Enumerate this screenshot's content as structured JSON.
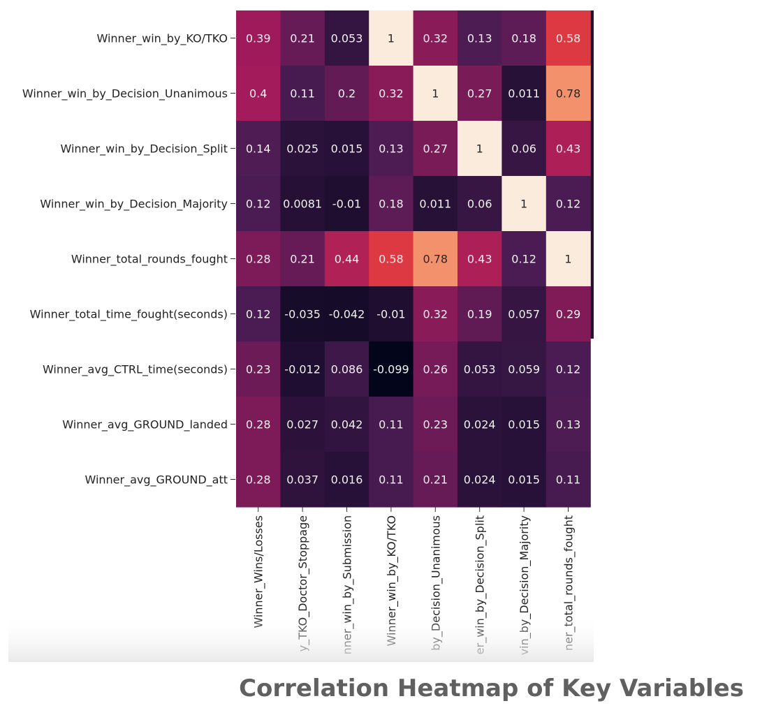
{
  "caption": "Correlation Heatmap of Key Variables",
  "colors": {
    "scale_low": "#03051a",
    "scale_mid1": "#4a1c53",
    "scale_mid2": "#a11a5b",
    "scale_mid3": "#e83f3f",
    "scale_mid4": "#f69c73",
    "scale_high": "#faebdd",
    "caption_text": "#606060"
  },
  "chart_data": {
    "type": "heatmap",
    "title": "",
    "row_labels": [
      "Winner_win_by_KO/TKO",
      "Winner_win_by_Decision_Unanimous",
      "Winner_win_by_Decision_Split",
      "Winner_win_by_Decision_Majority",
      "Winner_total_rounds_fought",
      "Winner_total_time_fought(seconds)",
      "Winner_avg_CTRL_time(seconds)",
      "Winner_avg_GROUND_landed",
      "Winner_avg_GROUND_att"
    ],
    "col_labels": [
      "Winner_Wins/Losses",
      "y_TKO_Doctor_Stoppage",
      "nner_win_by_Submission",
      "Winner_win_by_KO/TKO",
      "by_Decision_Unanimous",
      "er_win_by_Decision_Split",
      "vin_by_Decision_Majority",
      "ner_total_rounds_fought"
    ],
    "values": [
      [
        0.39,
        0.21,
        0.053,
        1,
        0.32,
        0.13,
        0.18,
        0.58
      ],
      [
        0.4,
        0.11,
        0.2,
        0.32,
        1,
        0.27,
        0.011,
        0.78
      ],
      [
        0.14,
        0.025,
        0.015,
        0.13,
        0.27,
        1,
        0.06,
        0.43
      ],
      [
        0.12,
        0.0081,
        -0.01,
        0.18,
        0.011,
        0.06,
        1,
        0.12
      ],
      [
        0.28,
        0.21,
        0.44,
        0.58,
        0.78,
        0.43,
        0.12,
        1
      ],
      [
        0.12,
        -0.035,
        -0.042,
        -0.01,
        0.32,
        0.19,
        0.057,
        0.29
      ],
      [
        0.23,
        -0.012,
        0.086,
        -0.099,
        0.26,
        0.053,
        0.059,
        0.12
      ],
      [
        0.28,
        0.027,
        0.042,
        0.11,
        0.23,
        0.024,
        0.015,
        0.13
      ],
      [
        0.28,
        0.037,
        0.016,
        0.11,
        0.21,
        0.024,
        0.015,
        0.11
      ]
    ],
    "labels": [
      [
        "0.39",
        "0.21",
        "0.053",
        "1",
        "0.32",
        "0.13",
        "0.18",
        "0.58"
      ],
      [
        "0.4",
        "0.11",
        "0.2",
        "0.32",
        "1",
        "0.27",
        "0.011",
        "0.78"
      ],
      [
        "0.14",
        "0.025",
        "0.015",
        "0.13",
        "0.27",
        "1",
        "0.06",
        "0.43"
      ],
      [
        "0.12",
        "0.0081",
        "-0.01",
        "0.18",
        "0.011",
        "0.06",
        "1",
        "0.12"
      ],
      [
        "0.28",
        "0.21",
        "0.44",
        "0.58",
        "0.78",
        "0.43",
        "0.12",
        "1"
      ],
      [
        "0.12",
        "-0.035",
        "-0.042",
        "-0.01",
        "0.32",
        "0.19",
        "0.057",
        "0.29"
      ],
      [
        "0.23",
        "-0.012",
        "0.086",
        "-0.099",
        "0.26",
        "0.053",
        "0.059",
        "0.12"
      ],
      [
        "0.28",
        "0.027",
        "0.042",
        "0.11",
        "0.23",
        "0.024",
        "0.015",
        "0.13"
      ],
      [
        "0.28",
        "0.037",
        "0.016",
        "0.11",
        "0.21",
        "0.024",
        "0.015",
        "0.11"
      ]
    ],
    "color_range": [
      -0.1,
      1
    ]
  }
}
